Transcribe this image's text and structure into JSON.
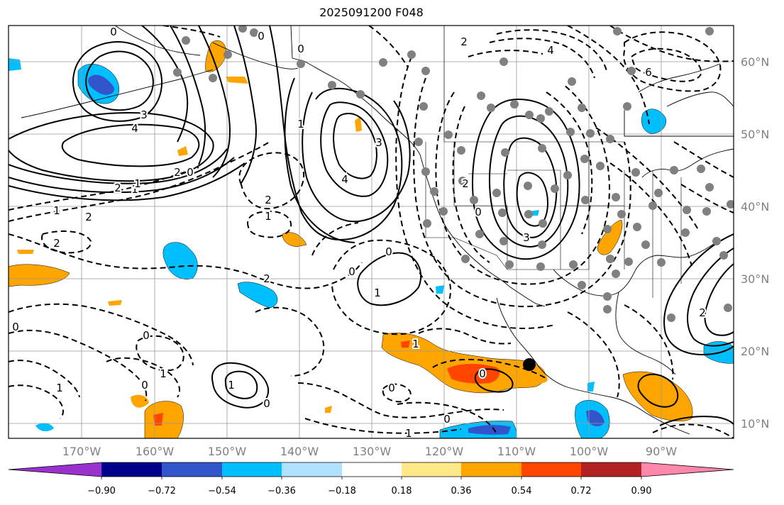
{
  "title": "2025091200 F048",
  "latitude_labels": [
    "60°N",
    "50°N",
    "40°N",
    "30°N",
    "20°N",
    "10°N"
  ],
  "longitude_labels": [
    "170°W",
    "160°W",
    "150°W",
    "140°W",
    "130°W",
    "120°W",
    "110°W",
    "100°W",
    "90°W"
  ],
  "colorbar": {
    "tick_labels": [
      "−0.90",
      "−0.72",
      "−0.54",
      "−0.36",
      "−0.18",
      "0.18",
      "0.36",
      "0.54",
      "0.72",
      "0.90"
    ],
    "colors": [
      "#9932cc",
      "#00008b",
      "#3355cc",
      "#00bfff",
      "#aee2ff",
      "#ffffff",
      "#ffe888",
      "#ffa500",
      "#ff4500",
      "#b22222",
      "#ff88aa"
    ]
  },
  "contour_labels": [
    "0",
    "0",
    "4",
    "3",
    "2",
    "1",
    "2",
    "1",
    "2",
    "2",
    "1",
    "2",
    "0",
    "1",
    "0",
    "1",
    "0",
    "0",
    "3",
    "4",
    "6",
    "4",
    "2",
    "3",
    "0",
    "2",
    "2",
    "1",
    "1",
    "0",
    "0",
    "0",
    "1",
    "0",
    "1",
    "0",
    "1",
    "0",
    "0",
    "1",
    "2"
  ],
  "station_marker": "current-location"
}
